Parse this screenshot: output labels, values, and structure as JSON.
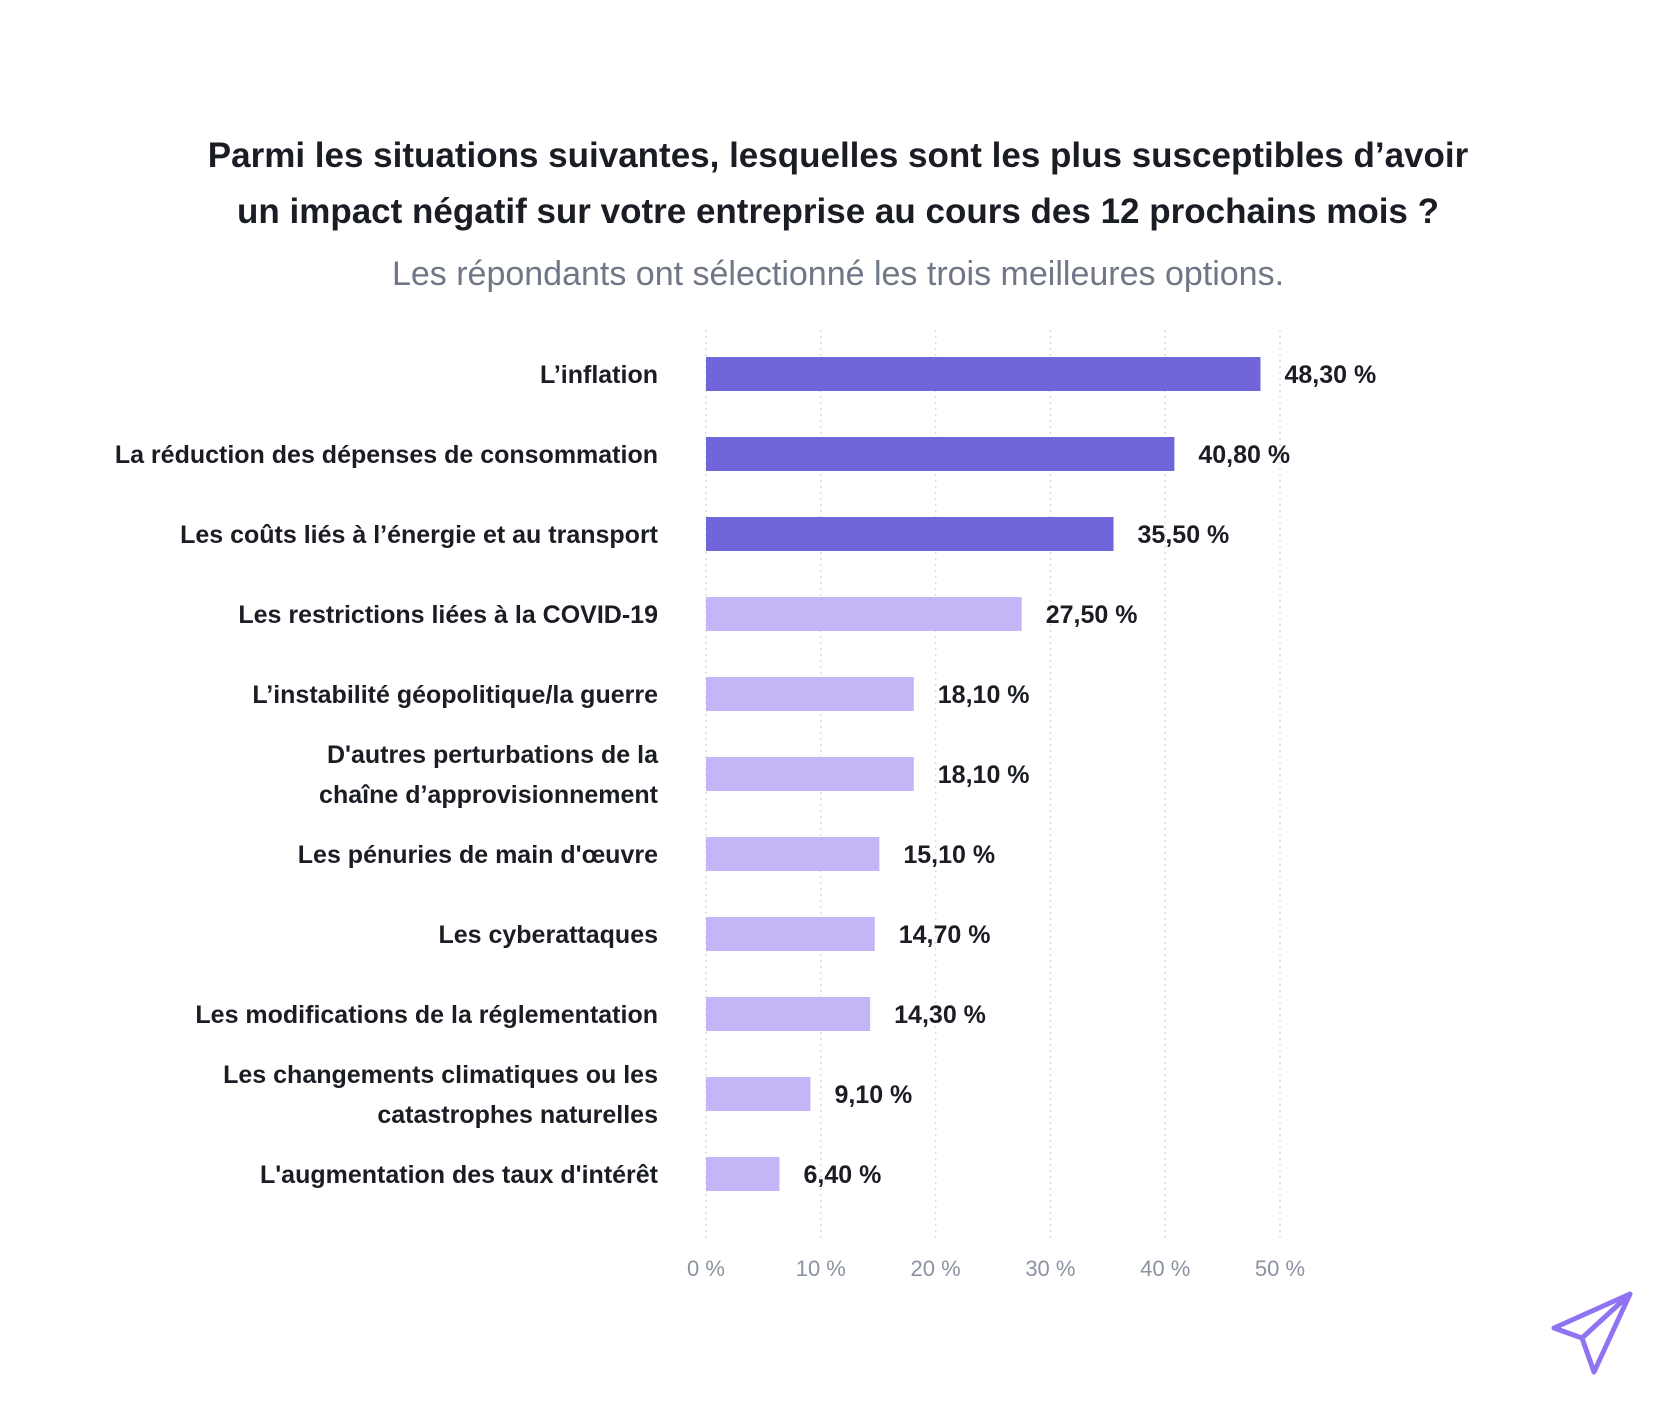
{
  "chart_data": {
    "type": "bar",
    "orientation": "horizontal",
    "title": "Parmi les situations suivantes, lesquelles sont les plus susceptibles d’avoir un impact négatif sur votre entreprise au cours des 12 prochains mois ?",
    "title_lines": [
      "Parmi les situations suivantes, lesquelles sont les plus susceptibles d’avoir",
      "un impact négatif sur votre entreprise au cours des 12 prochains mois ?"
    ],
    "subtitle": "Les répondants ont sélectionné les trois meilleures options.",
    "xlabel": "",
    "ylabel": "",
    "xlim": [
      0,
      50
    ],
    "grid": true,
    "ticks": [
      {
        "value": 0,
        "label": "0 %"
      },
      {
        "value": 10,
        "label": "10 %"
      },
      {
        "value": 20,
        "label": "20 %"
      },
      {
        "value": 30,
        "label": "30 %"
      },
      {
        "value": 40,
        "label": "40 %"
      },
      {
        "value": 50,
        "label": "50 %"
      }
    ],
    "categories": [
      [
        "L’inflation"
      ],
      [
        "La réduction des dépenses de consommation"
      ],
      [
        "Les coûts liés à l’énergie et au transport"
      ],
      [
        "Les restrictions liées à la COVID-19"
      ],
      [
        "L’instabilité géopolitique/la guerre"
      ],
      [
        "D'autres perturbations de la",
        "chaîne d’approvisionnement"
      ],
      [
        "Les pénuries de main d'œuvre"
      ],
      [
        "Les cyberattaques"
      ],
      [
        "Les modifications de la réglementation"
      ],
      [
        "Les changements climatiques ou les",
        "catastrophes naturelles"
      ],
      [
        "L'augmentation des taux d'intérêt"
      ]
    ],
    "values": [
      48.3,
      40.8,
      35.5,
      27.5,
      18.1,
      18.1,
      15.1,
      14.7,
      14.3,
      9.1,
      6.4
    ],
    "value_labels": [
      "48,30 %",
      "40,80 %",
      "35,50 %",
      "27,50 %",
      "18,10 %",
      "18,10 %",
      "15,10 %",
      "14,70 %",
      "14,30 %",
      "9,10 %",
      "6,40 %"
    ],
    "highlight": [
      true,
      true,
      true,
      false,
      false,
      false,
      false,
      false,
      false,
      false,
      false
    ],
    "colors": {
      "highlight": "#7066d9",
      "normal": "#c4b5f7",
      "grid": "#d9dce2"
    }
  },
  "brand": {
    "logo_icon": "paper-plane-icon",
    "logo_color": "#8f73f0"
  }
}
